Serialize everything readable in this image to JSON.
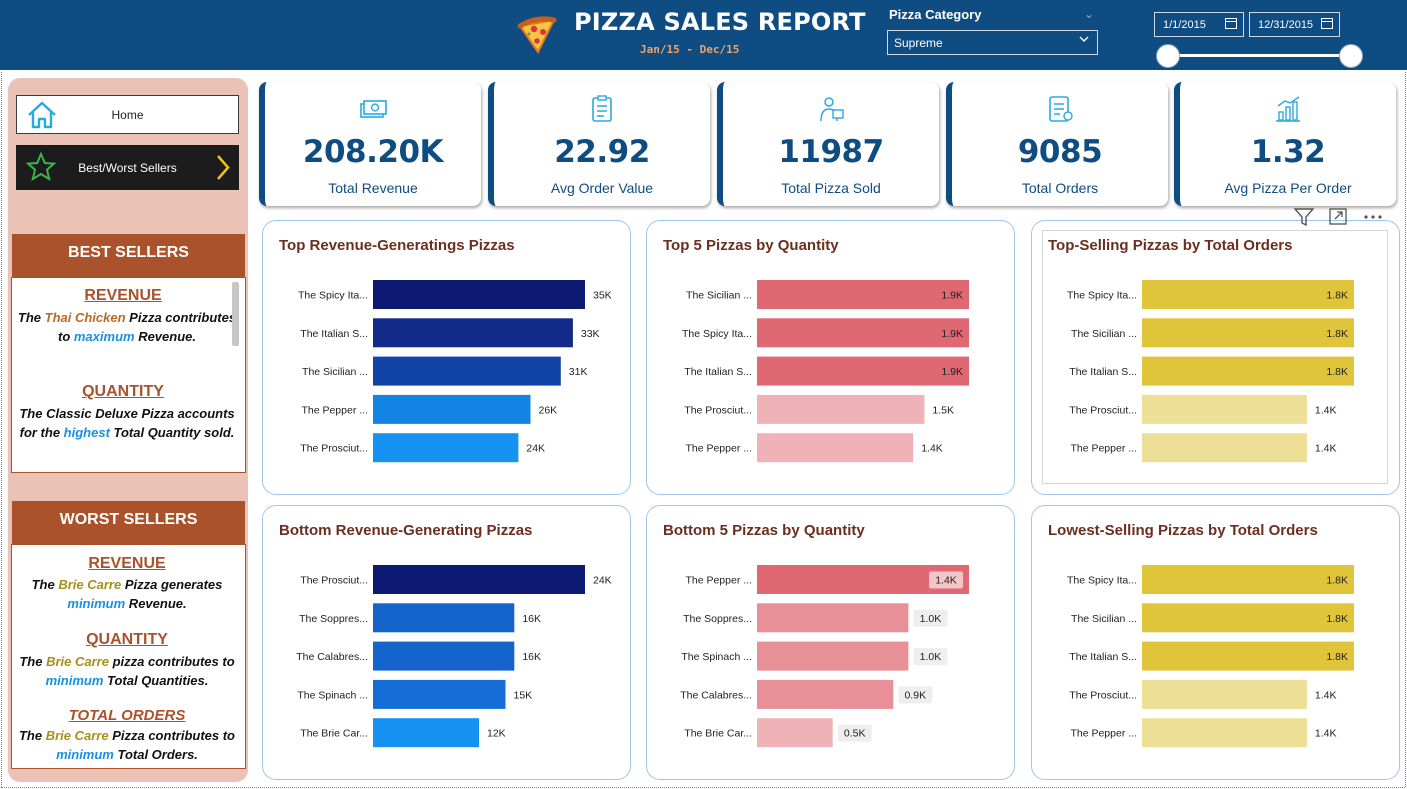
{
  "header": {
    "title": "PIZZA SALES REPORT",
    "subtitle": "Jan/15 -  Dec/15",
    "category_label": "Pizza Category",
    "category_value": "Supreme",
    "date_from": "1/1/2015",
    "date_to": "12/31/2015",
    "colors": {
      "bar": "#0f4c81"
    }
  },
  "nav": {
    "home_label": "Home",
    "best_worst_label": "Best/Worst Sellers"
  },
  "best_sellers": {
    "heading": "BEST SELLERS",
    "revenue_title": "REVENUE",
    "revenue_text": [
      "The ",
      "Thai Chicken",
      " Pizza contributes to ",
      "maximum",
      " Revenue."
    ],
    "quantity_title": "QUANTITY",
    "quantity_text": [
      "The Classic Deluxe Pizza accounts for the ",
      "highest",
      " Total Quantity sold."
    ]
  },
  "worst_sellers": {
    "heading": "WORST SELLERS",
    "revenue_title": "REVENUE",
    "revenue_text": [
      "The ",
      "Brie Carre",
      " Pizza generates ",
      "minimum",
      " Revenue."
    ],
    "quantity_title": "QUANTITY",
    "quantity_text": [
      "The ",
      "Brie Carre",
      " pizza contributes to ",
      "minimum",
      " Total Quantities."
    ],
    "orders_title": "TOTAL ORDERS",
    "orders_text": [
      "The ",
      "Brie Carre",
      " Pizza contributes to ",
      "minimum",
      " Total Orders."
    ]
  },
  "kpis": [
    {
      "value": "208.20K",
      "label": "Total Revenue",
      "icon": "money-icon"
    },
    {
      "value": "22.92",
      "label": "Avg Order Value",
      "icon": "clipboard-icon"
    },
    {
      "value": "11987",
      "label": "Total Pizza Sold",
      "icon": "delivery-icon"
    },
    {
      "value": "9085",
      "label": "Total Orders",
      "icon": "order-list-icon"
    },
    {
      "value": "1.32",
      "label": "Avg Pizza Per Order",
      "icon": "growth-chart-icon"
    }
  ],
  "chart_data": [
    {
      "type": "bar",
      "title": "Top Revenue-Generatings Pizzas",
      "categories": [
        "The Spicy Ita...",
        "The Italian S...",
        "The Sicilian ...",
        "The Pepper ...",
        "The Prosciut..."
      ],
      "values": [
        35,
        33,
        31,
        26,
        24
      ],
      "labels": [
        "35K",
        "33K",
        "31K",
        "26K",
        "24K"
      ],
      "colors": [
        "#0d1a72",
        "#122a8a",
        "#1243a6",
        "#1383e4",
        "#1692f2"
      ],
      "label_style": "outside"
    },
    {
      "type": "bar",
      "title": "Top 5 Pizzas by Quantity",
      "categories": [
        "The Sicilian ...",
        "The Spicy Ita...",
        "The Italian S...",
        "The Prosciut...",
        "The Pepper ..."
      ],
      "values": [
        1.9,
        1.9,
        1.9,
        1.5,
        1.4
      ],
      "labels": [
        "1.9K",
        "1.9K",
        "1.9K",
        "1.5K",
        "1.4K"
      ],
      "colors": [
        "#df6873",
        "#df6873",
        "#df6873",
        "#efb3b7",
        "#efb3b7"
      ],
      "label_style": "mixed"
    },
    {
      "type": "bar",
      "title": "Top-Selling Pizzas by Total Orders",
      "categories": [
        "The Spicy Ita...",
        "The Sicilian ...",
        "The Italian S...",
        "The Prosciut...",
        "The Pepper ..."
      ],
      "values": [
        1.8,
        1.8,
        1.8,
        1.4,
        1.4
      ],
      "labels": [
        "1.8K",
        "1.8K",
        "1.8K",
        "1.4K",
        "1.4K"
      ],
      "colors": [
        "#e0c43a",
        "#e0c43a",
        "#e0c43a",
        "#eedf96",
        "#eedf96"
      ],
      "label_style": "mixed"
    },
    {
      "type": "bar",
      "title": "Bottom Revenue-Generating Pizzas",
      "categories": [
        "The Prosciut...",
        "The Soppres...",
        "The Calabres...",
        "The Spinach ...",
        "The Brie Car..."
      ],
      "values": [
        24,
        16,
        16,
        15,
        12
      ],
      "labels": [
        "24K",
        "16K",
        "16K",
        "15K",
        "12K"
      ],
      "colors": [
        "#0d1a72",
        "#1564cc",
        "#1564cc",
        "#156ed6",
        "#1692f2"
      ],
      "label_style": "outside"
    },
    {
      "type": "bar",
      "title": "Bottom 5 Pizzas by Quantity",
      "categories": [
        "The Pepper ...",
        "The Soppres...",
        "The Spinach ...",
        "The Calabres...",
        "The Brie Car..."
      ],
      "values": [
        1.4,
        1.0,
        1.0,
        0.9,
        0.5
      ],
      "labels": [
        "1.4K",
        "1.0K",
        "1.0K",
        "0.9K",
        "0.5K"
      ],
      "colors": [
        "#df6873",
        "#e89097",
        "#e89097",
        "#e89097",
        "#efb3b7"
      ],
      "label_style": "badge"
    },
    {
      "type": "bar",
      "title": "Lowest-Selling Pizzas by Total Orders",
      "categories": [
        "The Spicy Ita...",
        "The Sicilian ...",
        "The Italian S...",
        "The Prosciut...",
        "The Pepper ..."
      ],
      "values": [
        1.8,
        1.8,
        1.8,
        1.4,
        1.4
      ],
      "labels": [
        "1.8K",
        "1.8K",
        "1.8K",
        "1.4K",
        "1.4K"
      ],
      "colors": [
        "#e0c43a",
        "#e0c43a",
        "#e0c43a",
        "#eedf96",
        "#eedf96"
      ],
      "label_style": "mixed"
    }
  ]
}
